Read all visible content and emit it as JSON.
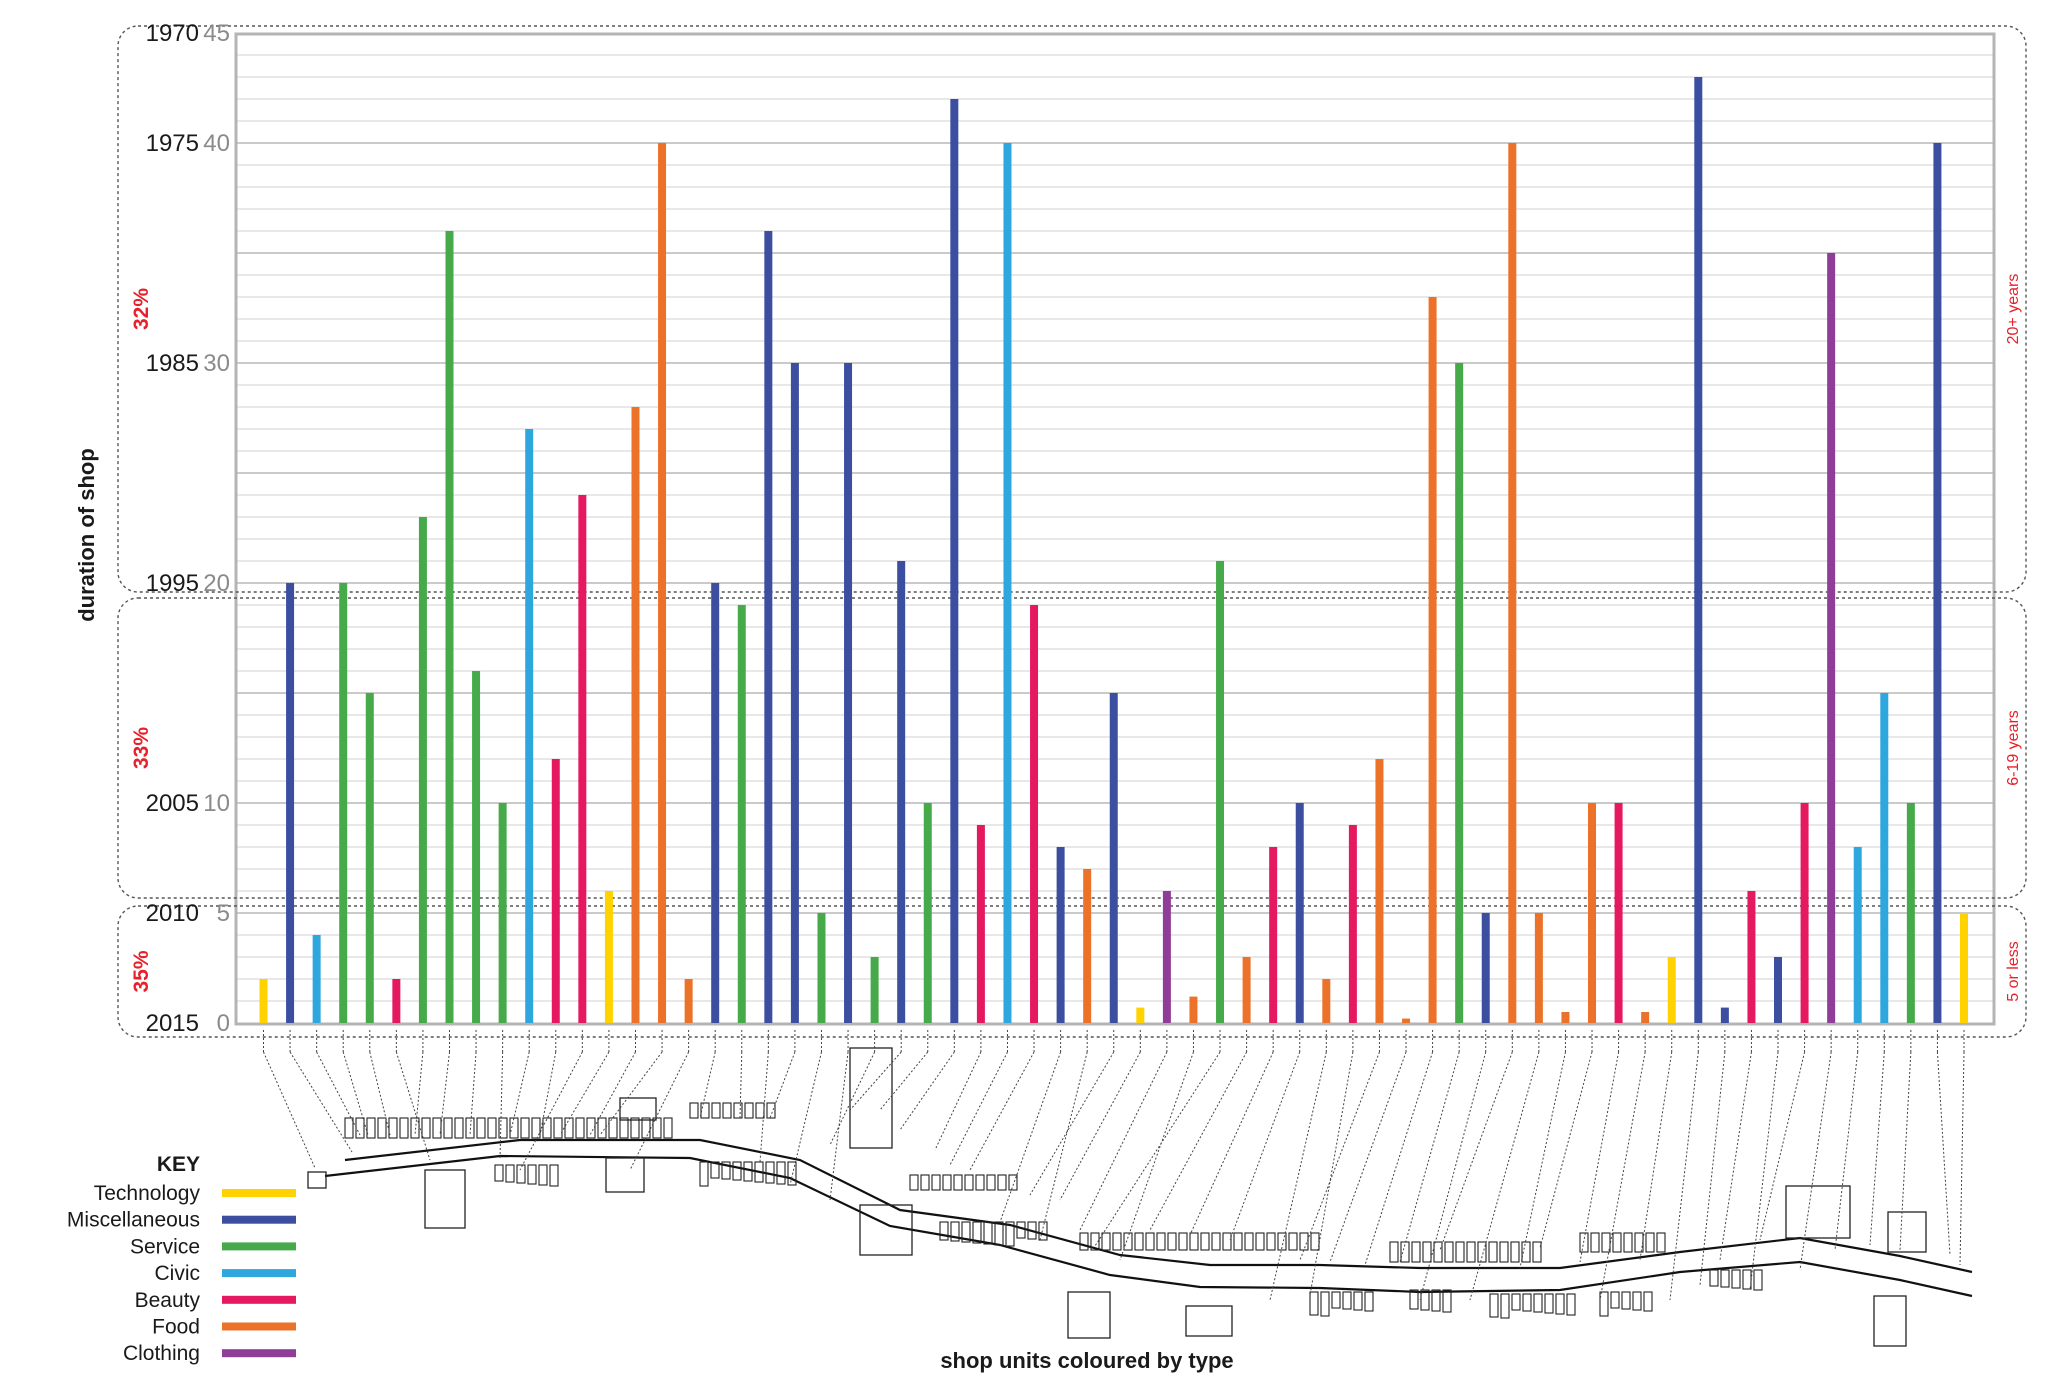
{
  "chart_data": {
    "type": "bar",
    "xlabel": "shop units coloured by type",
    "ylabel": "duration of shop",
    "ylim": [
      0,
      45
    ],
    "grid": true,
    "y_ticks": [
      {
        "value": 45,
        "label": "45",
        "year": "1970"
      },
      {
        "value": 40,
        "label": "40",
        "year": "1975"
      },
      {
        "value": 30,
        "label": "30",
        "year": "1985"
      },
      {
        "value": 20,
        "label": "20",
        "year": "1995"
      },
      {
        "value": 10,
        "label": "10",
        "year": "2005"
      },
      {
        "value": 5,
        "label": "5",
        "year": "2010"
      },
      {
        "value": 0,
        "label": "0",
        "year": "2015"
      }
    ],
    "bands": [
      {
        "range": [
          20,
          45
        ],
        "percent": "32%",
        "label": "20+ years"
      },
      {
        "range": [
          5,
          20
        ],
        "percent": "33%",
        "label": "6-19 years"
      },
      {
        "range": [
          0,
          5
        ],
        "percent": "35%",
        "label": "5 or less"
      }
    ],
    "key": {
      "title": "KEY",
      "types": [
        {
          "name": "Technology",
          "color": "#FFD200"
        },
        {
          "name": "Miscellaneous",
          "color": "#3C4EA0"
        },
        {
          "name": "Service",
          "color": "#46AA4B"
        },
        {
          "name": "Civic",
          "color": "#2EA7DF"
        },
        {
          "name": "Beauty",
          "color": "#E5195F"
        },
        {
          "name": "Food",
          "color": "#EB7228"
        },
        {
          "name": "Clothing",
          "color": "#8E3E96"
        }
      ]
    },
    "bars": [
      {
        "type": "Technology",
        "value": 2
      },
      {
        "type": "Miscellaneous",
        "value": 20
      },
      {
        "type": "Civic",
        "value": 4
      },
      {
        "type": "Service",
        "value": 20
      },
      {
        "type": "Service",
        "value": 15
      },
      {
        "type": "Beauty",
        "value": 2
      },
      {
        "type": "Service",
        "value": 23
      },
      {
        "type": "Service",
        "value": 36
      },
      {
        "type": "Service",
        "value": 16
      },
      {
        "type": "Service",
        "value": 10
      },
      {
        "type": "Civic",
        "value": 27
      },
      {
        "type": "Beauty",
        "value": 12
      },
      {
        "type": "Beauty",
        "value": 24
      },
      {
        "type": "Technology",
        "value": 6
      },
      {
        "type": "Food",
        "value": 28
      },
      {
        "type": "Food",
        "value": 40
      },
      {
        "type": "Food",
        "value": 2
      },
      {
        "type": "Miscellaneous",
        "value": 20
      },
      {
        "type": "Service",
        "value": 19
      },
      {
        "type": "Miscellaneous",
        "value": 36
      },
      {
        "type": "Miscellaneous",
        "value": 30
      },
      {
        "type": "Service",
        "value": 5
      },
      {
        "type": "Miscellaneous",
        "value": 30
      },
      {
        "type": "Service",
        "value": 3
      },
      {
        "type": "Miscellaneous",
        "value": 21
      },
      {
        "type": "Service",
        "value": 10
      },
      {
        "type": "Miscellaneous",
        "value": 42
      },
      {
        "type": "Beauty",
        "value": 9
      },
      {
        "type": "Civic",
        "value": 40
      },
      {
        "type": "Beauty",
        "value": 19
      },
      {
        "type": "Miscellaneous",
        "value": 8
      },
      {
        "type": "Food",
        "value": 7
      },
      {
        "type": "Miscellaneous",
        "value": 15
      },
      {
        "type": "Technology",
        "value": 0.7
      },
      {
        "type": "Clothing",
        "value": 6
      },
      {
        "type": "Food",
        "value": 1.2
      },
      {
        "type": "Service",
        "value": 21
      },
      {
        "type": "Food",
        "value": 3
      },
      {
        "type": "Beauty",
        "value": 8
      },
      {
        "type": "Miscellaneous",
        "value": 10
      },
      {
        "type": "Food",
        "value": 2
      },
      {
        "type": "Beauty",
        "value": 9
      },
      {
        "type": "Food",
        "value": 12
      },
      {
        "type": "Food",
        "value": 0.2
      },
      {
        "type": "Food",
        "value": 33
      },
      {
        "type": "Service",
        "value": 30
      },
      {
        "type": "Miscellaneous",
        "value": 5
      },
      {
        "type": "Food",
        "value": 40
      },
      {
        "type": "Food",
        "value": 5
      },
      {
        "type": "Food",
        "value": 0.5
      },
      {
        "type": "Food",
        "value": 10
      },
      {
        "type": "Beauty",
        "value": 10
      },
      {
        "type": "Food",
        "value": 0.5
      },
      {
        "type": "Technology",
        "value": 3
      },
      {
        "type": "Miscellaneous",
        "value": 43
      },
      {
        "type": "Miscellaneous",
        "value": 0.7
      },
      {
        "type": "Beauty",
        "value": 6
      },
      {
        "type": "Miscellaneous",
        "value": 3
      },
      {
        "type": "Beauty",
        "value": 10
      },
      {
        "type": "Clothing",
        "value": 35
      },
      {
        "type": "Civic",
        "value": 8
      },
      {
        "type": "Civic",
        "value": 15
      },
      {
        "type": "Service",
        "value": 10
      },
      {
        "type": "Miscellaneous",
        "value": 40
      },
      {
        "type": "Technology",
        "value": 5
      }
    ]
  }
}
